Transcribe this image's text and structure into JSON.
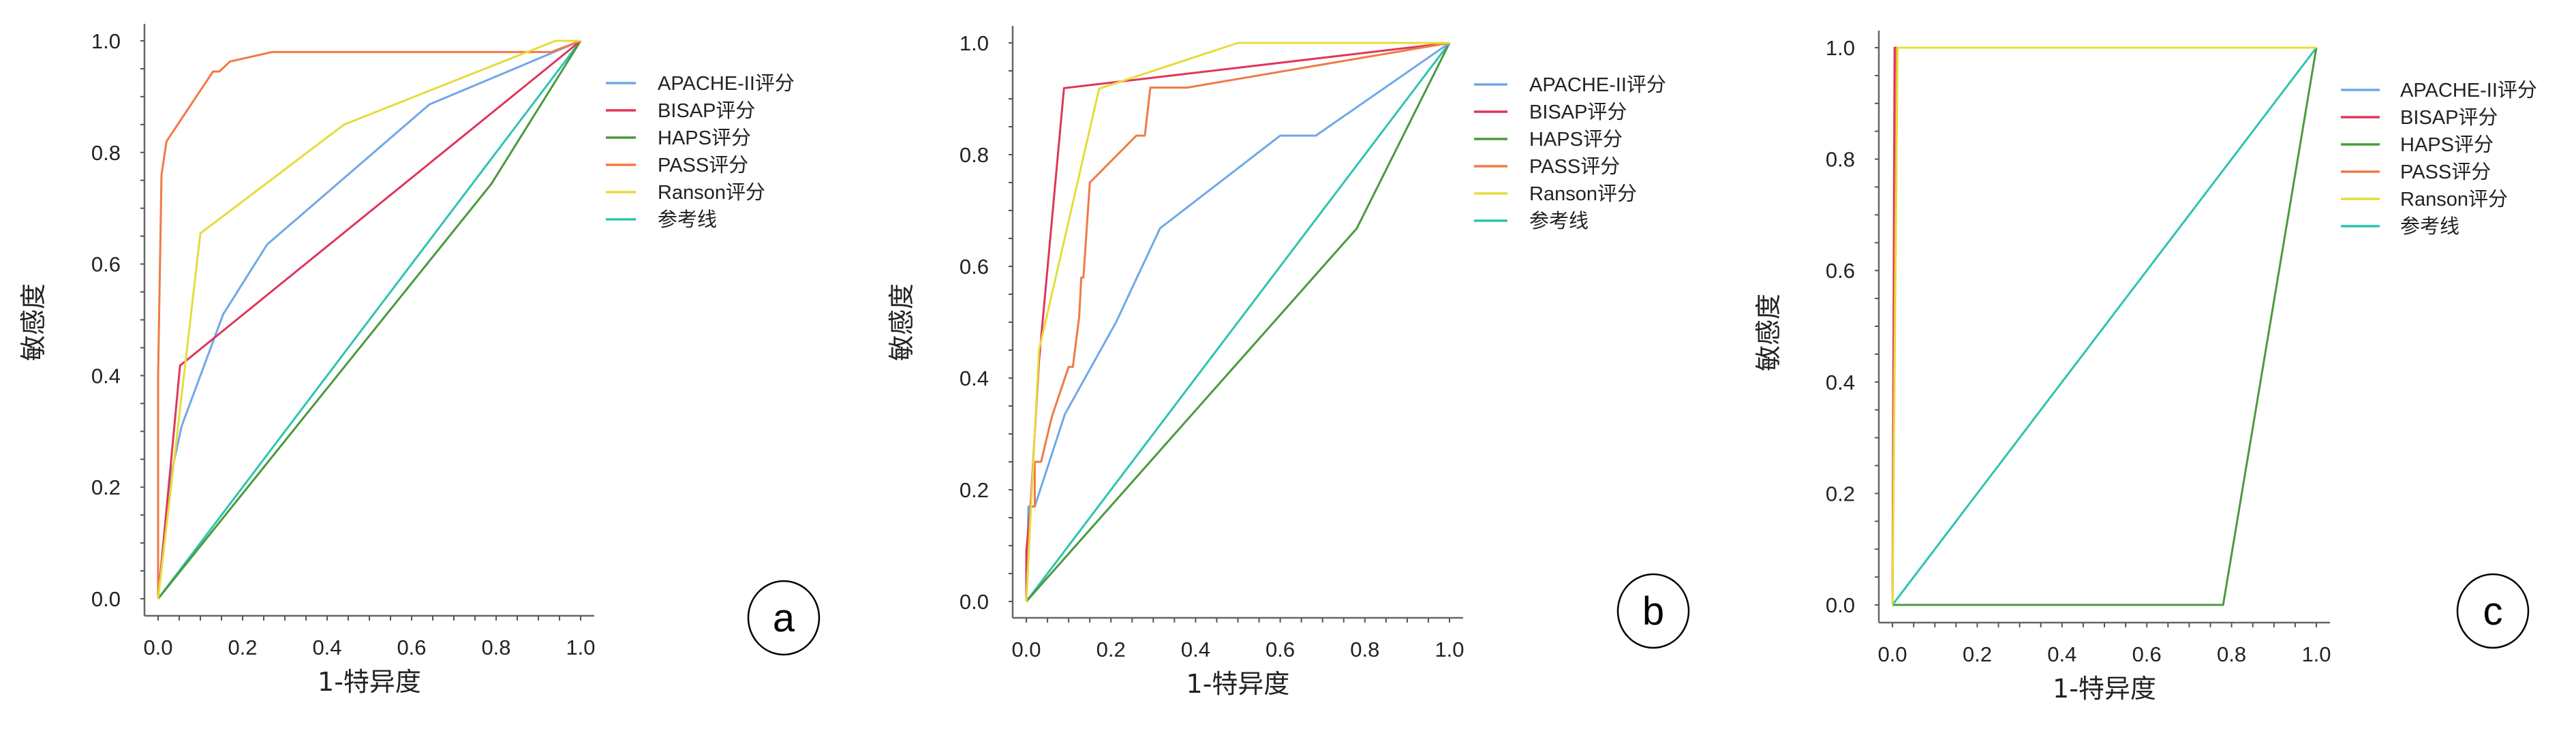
{
  "chart_data": [
    {
      "type": "line",
      "panel_label": "a",
      "xlabel": "1-特异度",
      "ylabel": "敏感度",
      "xlim": [
        0,
        1
      ],
      "ylim": [
        0,
        1
      ],
      "xticks": [
        "0.0",
        "0.2",
        "0.4",
        "0.6",
        "0.8",
        "1.0"
      ],
      "yticks": [
        "0.0",
        "0.2",
        "0.4",
        "0.6",
        "0.8",
        "1.0"
      ],
      "grid": false,
      "legend_placement": "right",
      "series": [
        {
          "name": "APACHE-II评分",
          "color": "#6fa8e8",
          "x": [
            0,
            0.01,
            0.03,
            0.056,
            0.154,
            0.258,
            0.642,
            1
          ],
          "y": [
            0,
            0.08,
            0.22,
            0.31,
            0.51,
            0.635,
            0.886,
            1
          ]
        },
        {
          "name": "BISAP评分",
          "color": "#e0365a",
          "x": [
            0,
            0.052,
            1
          ],
          "y": [
            0,
            0.418,
            1
          ]
        },
        {
          "name": "HAPS评分",
          "color": "#4a9a3c",
          "x": [
            0,
            0.789,
            1
          ],
          "y": [
            0,
            0.744,
            1
          ]
        },
        {
          "name": "PASS评分",
          "color": "#f07a45",
          "x": [
            0,
            0.0,
            0.008,
            0.02,
            0.13,
            0.145,
            0.17,
            0.27,
            0.93,
            1
          ],
          "y": [
            0,
            0.4,
            0.76,
            0.82,
            0.945,
            0.945,
            0.963,
            0.98,
            0.98,
            1
          ]
        },
        {
          "name": "Ranson评分",
          "color": "#e6dc3a",
          "x": [
            0,
            0.1,
            0.44,
            0.94,
            1
          ],
          "y": [
            0,
            0.655,
            0.85,
            1,
            1
          ]
        },
        {
          "name": "参考线",
          "color": "#2ec4b0",
          "x": [
            0,
            1
          ],
          "y": [
            0,
            1
          ]
        }
      ]
    },
    {
      "type": "line",
      "panel_label": "b",
      "xlabel": "1-特异度",
      "ylabel": "敏感度",
      "xlim": [
        0,
        1
      ],
      "ylim": [
        0,
        1
      ],
      "xticks": [
        "0.0",
        "0.2",
        "0.4",
        "0.6",
        "0.8",
        "1.0"
      ],
      "yticks": [
        "0.0",
        "0.2",
        "0.4",
        "0.6",
        "0.8",
        "1.0"
      ],
      "grid": false,
      "legend_placement": "right",
      "series": [
        {
          "name": "APACHE-II评分",
          "color": "#6fa8e8",
          "x": [
            0,
            0.005,
            0.02,
            0.091,
            0.212,
            0.316,
            0.6,
            0.684,
            1
          ],
          "y": [
            0,
            0.17,
            0.17,
            0.335,
            0.5,
            0.668,
            0.834,
            0.834,
            1
          ]
        },
        {
          "name": "BISAP评分",
          "color": "#e0365a",
          "x": [
            0,
            0.0,
            0.01,
            0.03,
            0.089,
            1
          ],
          "y": [
            0,
            0.09,
            0.17,
            0.43,
            0.919,
            1
          ]
        },
        {
          "name": "HAPS评分",
          "color": "#4a9a3c",
          "x": [
            0,
            0.781,
            1
          ],
          "y": [
            0,
            0.668,
            1
          ]
        },
        {
          "name": "PASS评分",
          "color": "#f07a45",
          "x": [
            0,
            0.01,
            0.02,
            0.02,
            0.035,
            0.06,
            0.1,
            0.11,
            0.125,
            0.13,
            0.135,
            0.15,
            0.26,
            0.28,
            0.293,
            0.38,
            1
          ],
          "y": [
            0,
            0.17,
            0.17,
            0.25,
            0.25,
            0.33,
            0.42,
            0.42,
            0.51,
            0.58,
            0.58,
            0.75,
            0.834,
            0.834,
            0.92,
            0.92,
            1
          ]
        },
        {
          "name": "Ranson评分",
          "color": "#e6dc3a",
          "x": [
            0,
            0.02,
            0.03,
            0.172,
            0.5,
            1
          ],
          "y": [
            0,
            0.3,
            0.45,
            0.918,
            1,
            1
          ]
        },
        {
          "name": "参考线",
          "color": "#2ec4b0",
          "x": [
            0,
            1
          ],
          "y": [
            0,
            1
          ]
        }
      ]
    },
    {
      "type": "line",
      "panel_label": "c",
      "xlabel": "1-特异度",
      "ylabel": "敏感度",
      "xlim": [
        0,
        1
      ],
      "ylim": [
        0,
        1
      ],
      "xticks": [
        "0.0",
        "0.2",
        "0.4",
        "0.6",
        "0.8",
        "1.0"
      ],
      "yticks": [
        "0.0",
        "0.2",
        "0.4",
        "0.6",
        "0.8",
        "1.0"
      ],
      "grid": false,
      "legend_placement": "right",
      "series": [
        {
          "name": "APACHE-II评分",
          "color": "#6fa8e8",
          "x": [
            0,
            0.01,
            1
          ],
          "y": [
            0,
            1,
            1
          ]
        },
        {
          "name": "BISAP评分",
          "color": "#e0365a",
          "x": [
            0,
            0.005,
            1
          ],
          "y": [
            0,
            1,
            1
          ]
        },
        {
          "name": "HAPS评分",
          "color": "#4a9a3c",
          "x": [
            0,
            0.78,
            1
          ],
          "y": [
            0,
            0,
            1
          ]
        },
        {
          "name": "PASS评分",
          "color": "#f07a45",
          "x": [
            0,
            0.01,
            1
          ],
          "y": [
            0,
            1,
            1
          ]
        },
        {
          "name": "Ranson评分",
          "color": "#e6dc3a",
          "x": [
            0,
            0.012,
            1
          ],
          "y": [
            0,
            1,
            1
          ]
        },
        {
          "name": "参考线",
          "color": "#2ec4b0",
          "x": [
            0,
            1
          ],
          "y": [
            0,
            1
          ]
        }
      ]
    }
  ]
}
